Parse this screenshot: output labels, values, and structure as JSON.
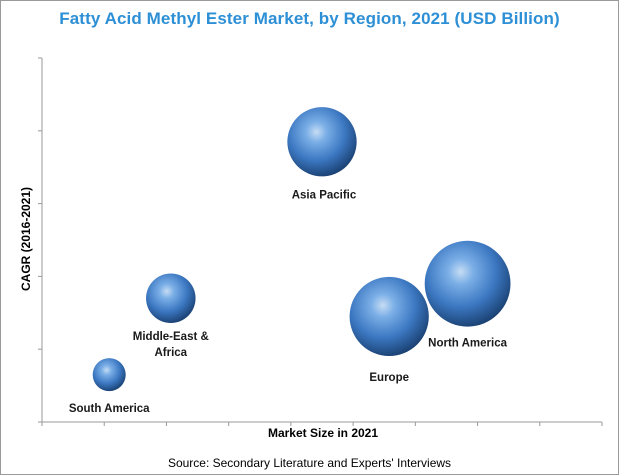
{
  "chart_data": {
    "type": "scatter",
    "title": "Fatty Acid Methyl Ester Market, by Region, 2021 (USD Billion)",
    "xlabel": "Market Size in 2021",
    "ylabel": "CAGR (2016-2021)",
    "xlim": [
      0,
      10
    ],
    "ylim": [
      0,
      10
    ],
    "grid": false,
    "legend": "none",
    "bubble_color": "#3f7fc8",
    "points": [
      {
        "label": "South America",
        "x": 1.2,
        "y": 1.3,
        "size": 1.0
      },
      {
        "label": "Middle-East & Africa",
        "label_lines": [
          "Middle-East &",
          "Africa"
        ],
        "x": 2.3,
        "y": 3.4,
        "size": 1.5
      },
      {
        "label": "Asia Pacific",
        "x": 5.0,
        "y": 7.7,
        "size": 2.1
      },
      {
        "label": "Europe",
        "x": 6.2,
        "y": 2.9,
        "size": 2.4
      },
      {
        "label": "North America",
        "x": 7.6,
        "y": 3.8,
        "size": 2.6
      }
    ]
  },
  "source_text": "Source: Secondary Literature and Experts' Interviews"
}
